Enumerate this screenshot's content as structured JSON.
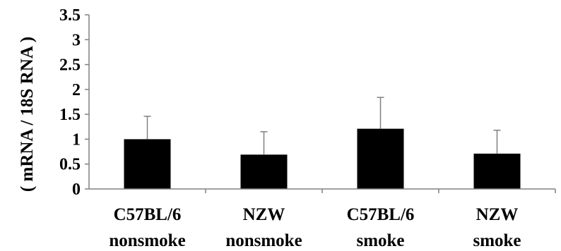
{
  "chart_data": {
    "type": "bar",
    "title": "",
    "xlabel": "",
    "ylabel": "( mRNA  / 18S RNA )",
    "ylim": [
      0,
      3.5
    ],
    "yticks": [
      0,
      0.5,
      1,
      1.5,
      2,
      2.5,
      3,
      3.5
    ],
    "ytick_labels": [
      "0",
      "0.5",
      "1",
      "1.5",
      "2",
      "2.5",
      "3",
      "3.5"
    ],
    "grid": false,
    "legend": "none",
    "categories": [
      {
        "line1": "C57BL/6",
        "line2": "nonsmoke"
      },
      {
        "line1": "NZW",
        "line2": "nonsmoke"
      },
      {
        "line1": "C57BL/6",
        "line2": "smoke"
      },
      {
        "line1": "NZW",
        "line2": "smoke"
      }
    ],
    "values": [
      1.0,
      0.69,
      1.21,
      0.71
    ],
    "error_upper": [
      0.46,
      0.46,
      0.63,
      0.47
    ],
    "bar_color": "#000000",
    "axis_color": "#808080"
  }
}
